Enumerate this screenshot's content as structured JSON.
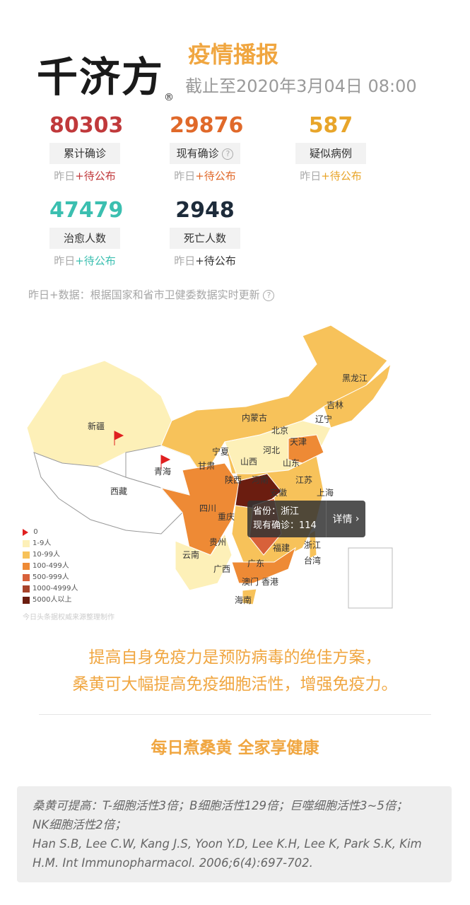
{
  "brand": {
    "logo_text": "千济方",
    "registered": "®"
  },
  "header": {
    "title": "疫情播报",
    "date": "截止至2020年3月04日 08:00"
  },
  "stats": [
    {
      "value": "80303",
      "label": "累计确诊",
      "sub_prefix": "昨日",
      "sub_value": "+待公布",
      "color": "#c0393b"
    },
    {
      "value": "29876",
      "label": "现有确诊",
      "help": "?",
      "sub_prefix": "昨日",
      "sub_value": "+待公布",
      "color": "#e0692a"
    },
    {
      "value": "587",
      "label": "疑似病例",
      "sub_prefix": "昨日",
      "sub_value": "+待公布",
      "color": "#e8a52a"
    },
    {
      "value": "47479",
      "label": "治愈人数",
      "sub_prefix": "昨日",
      "sub_value": "+待公布",
      "color": "#3bbfb0"
    },
    {
      "value": "2948",
      "label": "死亡人数",
      "sub_prefix": "昨日",
      "sub_value": "+待公布",
      "color": "#1d2b3a"
    }
  ],
  "note": {
    "text": "昨日+数据：根据国家和省市卫健委数据实时更新",
    "help": "?"
  },
  "map": {
    "provinces": [
      "黑龙江",
      "吉林",
      "辽宁",
      "内蒙古",
      "新疆",
      "北京",
      "天津",
      "河北",
      "山西",
      "山东",
      "宁夏",
      "甘肃",
      "青海",
      "陕西",
      "河南",
      "江苏",
      "安徽",
      "上海",
      "西藏",
      "四川",
      "重庆",
      "浙江",
      "贵州",
      "福建",
      "云南",
      "广西",
      "广东",
      "台湾",
      "澳门",
      "香港",
      "海南"
    ],
    "legend": [
      {
        "label": "0",
        "color": "#e02020",
        "icon": "flag-icon"
      },
      {
        "label": "1-9人",
        "color": "#fdf0b8"
      },
      {
        "label": "10-99人",
        "color": "#f7c25a"
      },
      {
        "label": "100-499人",
        "color": "#ee8a35"
      },
      {
        "label": "500-999人",
        "color": "#d8613a"
      },
      {
        "label": "1000-4999人",
        "color": "#a8432a"
      },
      {
        "label": "5000人以上",
        "color": "#6b1d10"
      }
    ],
    "source": "今日头条据权威来源整理制作",
    "tooltip": {
      "province_line": "省份：浙江",
      "count_line": "现有确诊：114",
      "detail": "详情"
    }
  },
  "slogan": {
    "line1": "提高自身免疫力是预防病毒的绝佳方案，",
    "line2": "桑黄可大幅提高免疫细胞活性，增强免疫力。",
    "tagline": "每日煮桑黄 全家享健康"
  },
  "reference": {
    "line1": "桑黄可提高：T-细胞活性3倍；B细胞活性129倍；巨噬细胞活性3~5倍；",
    "line2": "NK细胞活性2倍；",
    "line3": "Han S.B, Lee C.W, Kang J.S, Yoon Y.D, Lee K.H, Lee K, Park S.K, Kim",
    "line4": "H.M. Int Immunopharmacol. 2006;6(4):697-702."
  }
}
